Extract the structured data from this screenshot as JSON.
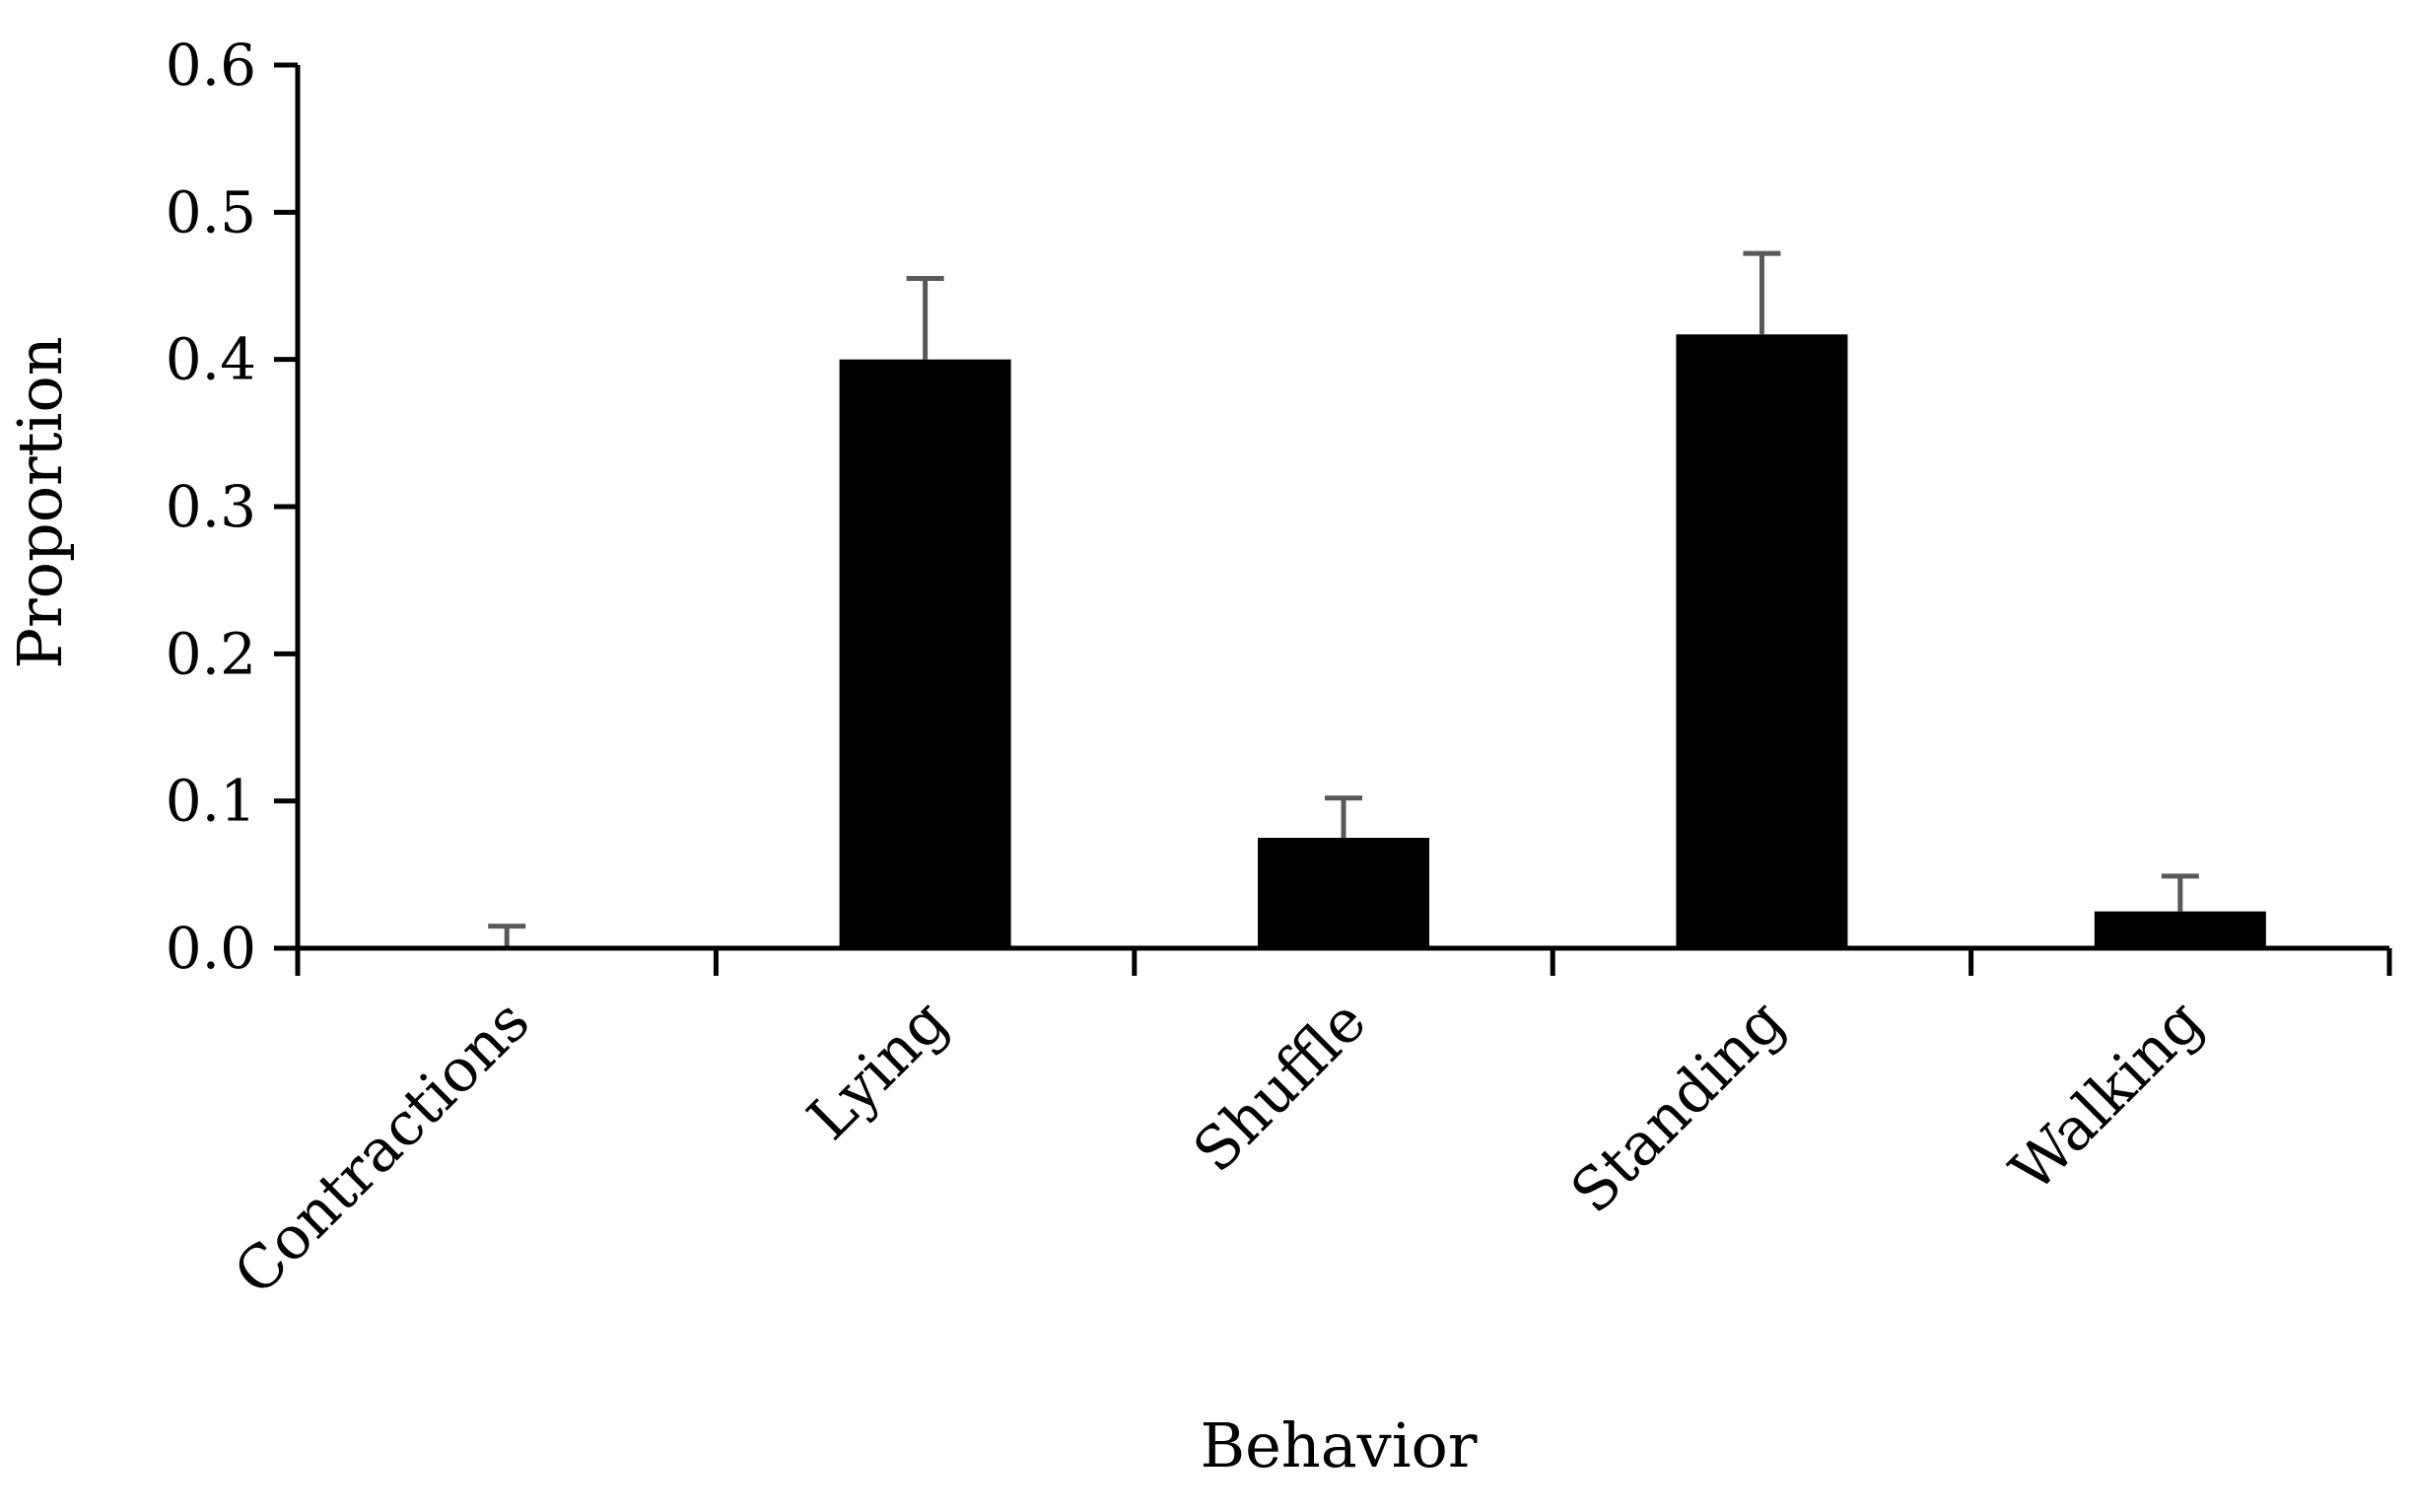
{
  "chart_data": {
    "type": "bar",
    "title": "",
    "xlabel": "Behavior",
    "ylabel": "Proportion",
    "categories": [
      "Contractions",
      "Lying",
      "Shuffle",
      "Standing",
      "Walking"
    ],
    "values": [
      0.0,
      0.4,
      0.075,
      0.417,
      0.025
    ],
    "error_plus": [
      0.015,
      0.055,
      0.027,
      0.055,
      0.024
    ],
    "ylim": [
      0.0,
      0.6
    ],
    "yticks": [
      "0.0",
      "0.1",
      "0.2",
      "0.3",
      "0.4",
      "0.5",
      "0.6"
    ],
    "grid": false,
    "legend": "none",
    "colors": {
      "bar": "#000000",
      "error_bar": "#595959",
      "axis": "#000000"
    }
  }
}
